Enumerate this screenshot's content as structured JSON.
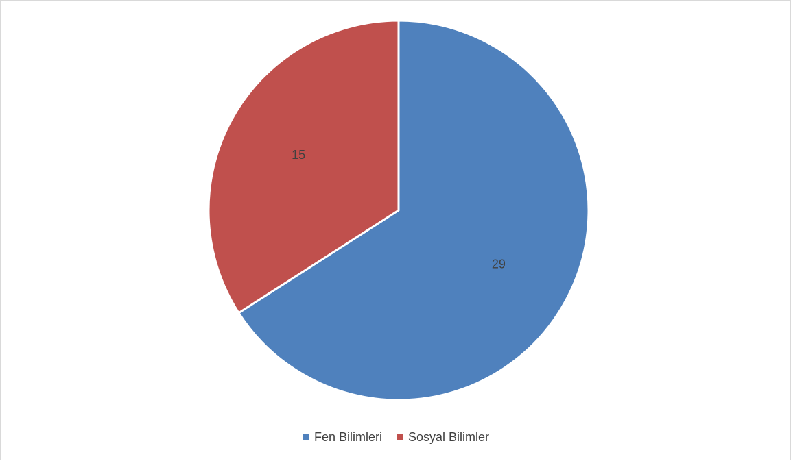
{
  "chart_data": {
    "type": "pie",
    "title": "",
    "categories": [
      "Fen Bilimleri",
      "Sosyal Bilimler"
    ],
    "values": [
      29,
      15
    ],
    "data_labels": [
      "29",
      "15"
    ],
    "colors": [
      "#4f81bd",
      "#c0504d"
    ],
    "start_angle_deg": 0,
    "direction": "clockwise",
    "legend": {
      "position": "bottom",
      "entries": [
        "Fen Bilimleri",
        "Sosyal Bilimler"
      ]
    }
  }
}
